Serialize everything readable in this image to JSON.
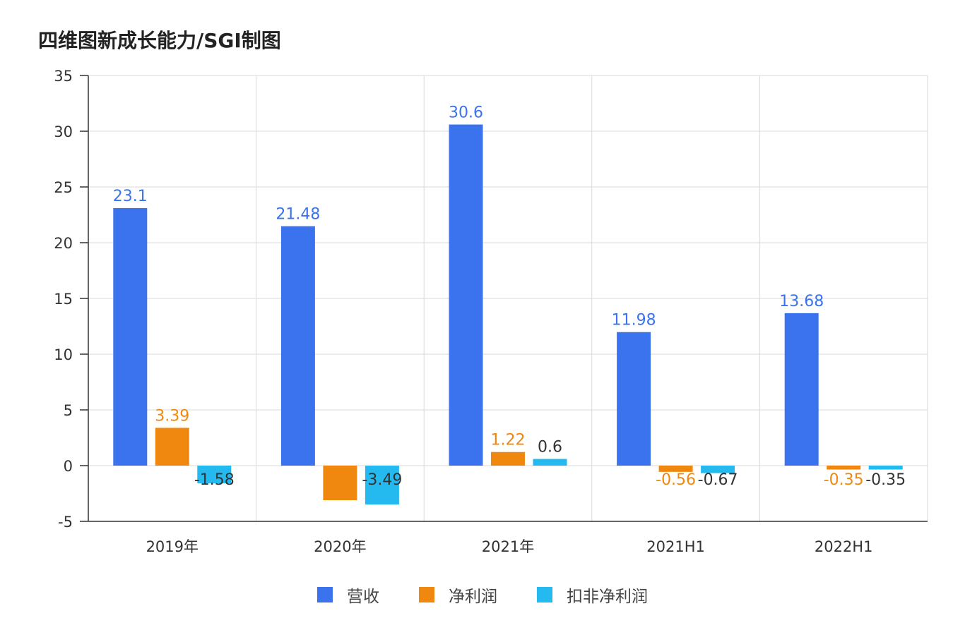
{
  "chart_data": {
    "type": "bar",
    "title": "四维图新成长能力/SGI制图",
    "categories": [
      "2019年",
      "2020年",
      "2021年",
      "2021H1",
      "2022H1"
    ],
    "series": [
      {
        "name": "营收",
        "values": [
          23.1,
          21.48,
          30.6,
          11.98,
          13.68
        ],
        "color": "#3b73ee",
        "label_color": "#3b73ee"
      },
      {
        "name": "净利润",
        "values": [
          3.39,
          -3.1,
          1.22,
          -0.56,
          -0.35
        ],
        "color": "#f0880f",
        "label_color": "#f0880f"
      },
      {
        "name": "扣非净利润",
        "values": [
          -1.58,
          -3.49,
          0.6,
          -0.67,
          -0.35
        ],
        "color": "#24b9ef",
        "label_color": "#333333"
      }
    ],
    "ylim": [
      -5,
      35
    ],
    "yticks": [
      -5,
      0,
      5,
      10,
      15,
      20,
      25,
      30,
      35
    ],
    "grid": true,
    "legend": "bottom-center",
    "xlabel": "",
    "ylabel": ""
  }
}
